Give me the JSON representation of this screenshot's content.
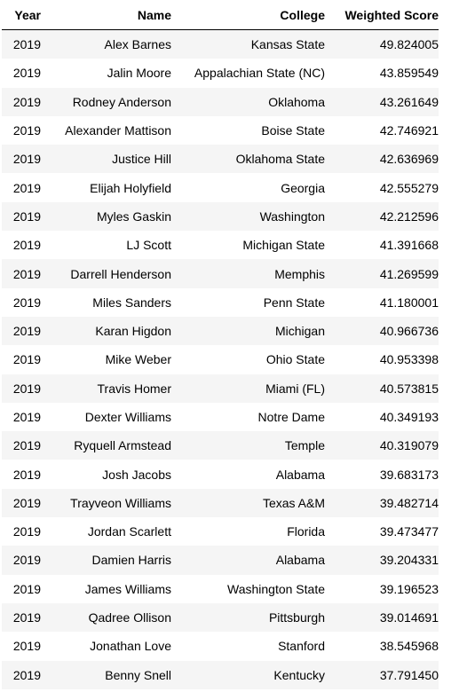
{
  "table": {
    "headers": [
      "Year",
      "Name",
      "College",
      "Weighted Score"
    ],
    "rows": [
      [
        "2019",
        "Alex Barnes",
        "Kansas State",
        "49.824005"
      ],
      [
        "2019",
        "Jalin Moore",
        "Appalachian State (NC)",
        "43.859549"
      ],
      [
        "2019",
        "Rodney Anderson",
        "Oklahoma",
        "43.261649"
      ],
      [
        "2019",
        "Alexander Mattison",
        "Boise State",
        "42.746921"
      ],
      [
        "2019",
        "Justice Hill",
        "Oklahoma State",
        "42.636969"
      ],
      [
        "2019",
        "Elijah Holyfield",
        "Georgia",
        "42.555279"
      ],
      [
        "2019",
        "Myles Gaskin",
        "Washington",
        "42.212596"
      ],
      [
        "2019",
        "LJ Scott",
        "Michigan State",
        "41.391668"
      ],
      [
        "2019",
        "Darrell Henderson",
        "Memphis",
        "41.269599"
      ],
      [
        "2019",
        "Miles Sanders",
        "Penn State",
        "41.180001"
      ],
      [
        "2019",
        "Karan Higdon",
        "Michigan",
        "40.966736"
      ],
      [
        "2019",
        "Mike Weber",
        "Ohio State",
        "40.953398"
      ],
      [
        "2019",
        "Travis Homer",
        "Miami (FL)",
        "40.573815"
      ],
      [
        "2019",
        "Dexter Williams",
        "Notre Dame",
        "40.349193"
      ],
      [
        "2019",
        "Ryquell Armstead",
        "Temple",
        "40.319079"
      ],
      [
        "2019",
        "Josh Jacobs",
        "Alabama",
        "39.683173"
      ],
      [
        "2019",
        "Trayveon Williams",
        "Texas A&M",
        "39.482714"
      ],
      [
        "2019",
        "Jordan Scarlett",
        "Florida",
        "39.473477"
      ],
      [
        "2019",
        "Damien Harris",
        "Alabama",
        "39.204331"
      ],
      [
        "2019",
        "James Williams",
        "Washington State",
        "39.196523"
      ],
      [
        "2019",
        "Qadree Ollison",
        "Pittsburgh",
        "39.014691"
      ],
      [
        "2019",
        "Jonathan Love",
        "Stanford",
        "38.545968"
      ],
      [
        "2019",
        "Benny Snell",
        "Kentucky",
        "37.791450"
      ]
    ]
  }
}
